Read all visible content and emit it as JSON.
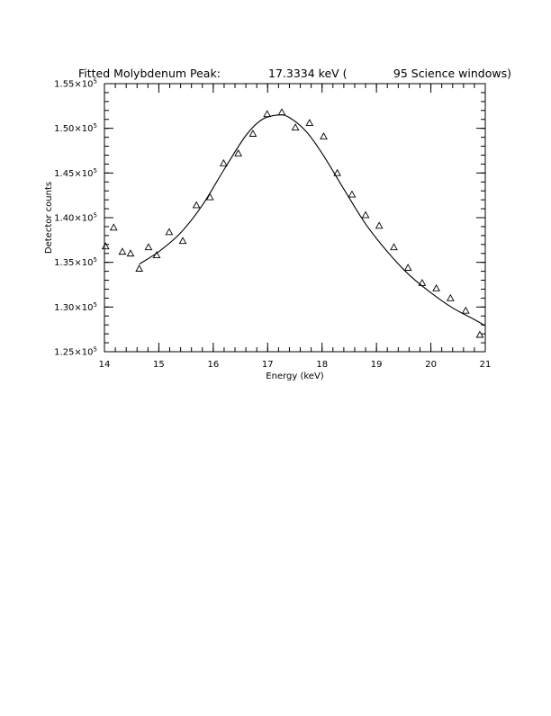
{
  "chart_data": {
    "type": "scatter",
    "title": {
      "label": "Fitted Molybdenum Peak:",
      "energy": "17.3334 keV (",
      "windows": "95 Science windows)"
    },
    "xlabel": "Energy (keV)",
    "ylabel": "Detector counts",
    "xlim": [
      14,
      21
    ],
    "ylim": [
      125000,
      155000
    ],
    "x_ticks": [
      14,
      15,
      16,
      17,
      18,
      19,
      20,
      21
    ],
    "x_tick_labels": [
      "14",
      "15",
      "16",
      "17",
      "18",
      "19",
      "20",
      "21"
    ],
    "y_ticks": [
      125000,
      130000,
      135000,
      140000,
      145000,
      150000,
      155000
    ],
    "y_tick_labels": [
      {
        "mantissa": "1.25×10",
        "exponent": "5"
      },
      {
        "mantissa": "1.30×10",
        "exponent": "5"
      },
      {
        "mantissa": "1.35×10",
        "exponent": "5"
      },
      {
        "mantissa": "1.40×10",
        "exponent": "5"
      },
      {
        "mantissa": "1.45×10",
        "exponent": "5"
      },
      {
        "mantissa": "1.50×10",
        "exponent": "5"
      },
      {
        "mantissa": "1.55×10",
        "exponent": "5"
      }
    ],
    "grid": false,
    "series": [
      {
        "marker": "triangle",
        "points": [
          {
            "x": 14.02,
            "y": 136800
          },
          {
            "x": 14.17,
            "y": 138900
          },
          {
            "x": 14.33,
            "y": 136200
          },
          {
            "x": 14.48,
            "y": 136000
          },
          {
            "x": 14.64,
            "y": 134300
          },
          {
            "x": 14.81,
            "y": 136700
          },
          {
            "x": 14.96,
            "y": 135800
          },
          {
            "x": 15.19,
            "y": 138400
          },
          {
            "x": 15.44,
            "y": 137400
          },
          {
            "x": 15.69,
            "y": 141400
          },
          {
            "x": 15.94,
            "y": 142300
          },
          {
            "x": 16.19,
            "y": 146100
          },
          {
            "x": 16.46,
            "y": 147200
          },
          {
            "x": 16.73,
            "y": 149400
          },
          {
            "x": 16.99,
            "y": 151600
          },
          {
            "x": 17.26,
            "y": 151800
          },
          {
            "x": 17.51,
            "y": 150100
          },
          {
            "x": 17.77,
            "y": 150600
          },
          {
            "x": 18.03,
            "y": 149100
          },
          {
            "x": 18.28,
            "y": 145000
          },
          {
            "x": 18.55,
            "y": 142600
          },
          {
            "x": 18.8,
            "y": 140300
          },
          {
            "x": 19.05,
            "y": 139100
          },
          {
            "x": 19.32,
            "y": 136700
          },
          {
            "x": 19.58,
            "y": 134400
          },
          {
            "x": 19.84,
            "y": 132700
          },
          {
            "x": 20.1,
            "y": 132100
          },
          {
            "x": 20.36,
            "y": 131000
          },
          {
            "x": 20.64,
            "y": 129600
          },
          {
            "x": 20.9,
            "y": 126900
          }
        ]
      },
      {
        "marker": "line",
        "points": [
          {
            "x": 14.64,
            "y": 134800
          },
          {
            "x": 15.0,
            "y": 136200
          },
          {
            "x": 15.4,
            "y": 138300
          },
          {
            "x": 15.8,
            "y": 141400
          },
          {
            "x": 16.2,
            "y": 145400
          },
          {
            "x": 16.6,
            "y": 149200
          },
          {
            "x": 16.9,
            "y": 151000
          },
          {
            "x": 17.2,
            "y": 151500
          },
          {
            "x": 17.4,
            "y": 151200
          },
          {
            "x": 17.7,
            "y": 149700
          },
          {
            "x": 18.0,
            "y": 147200
          },
          {
            "x": 18.4,
            "y": 143200
          },
          {
            "x": 18.8,
            "y": 139300
          },
          {
            "x": 19.2,
            "y": 136200
          },
          {
            "x": 19.6,
            "y": 133600
          },
          {
            "x": 20.0,
            "y": 131600
          },
          {
            "x": 20.4,
            "y": 129900
          },
          {
            "x": 20.8,
            "y": 128600
          },
          {
            "x": 21.0,
            "y": 127900
          }
        ]
      }
    ]
  }
}
